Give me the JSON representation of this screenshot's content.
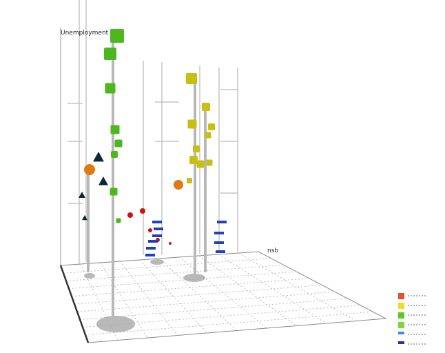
{
  "chart_data": {
    "type": "scatter",
    "projection": "3d",
    "title": "",
    "zlabel": "Unemployment",
    "xlabel": "nsb",
    "ylabel": "",
    "grid": true,
    "legend_position": "bottom-right",
    "series": [
      {
        "marker": "cube",
        "color": "#e8502a"
      },
      {
        "marker": "sphere",
        "color": "#e8e020"
      },
      {
        "marker": "cube",
        "color": "#5cc82a"
      },
      {
        "marker": "cube",
        "color": "#7ad83a"
      },
      {
        "marker": "bar",
        "color": "#3a8ee0"
      },
      {
        "marker": "bar",
        "color": "#2030b0"
      }
    ],
    "colors": {
      "green": "#4cb81e",
      "olive": "#c8c010",
      "orange": "#e07a10",
      "red": "#d01010",
      "navy": "#1a3a8a",
      "blue": "#2040c0",
      "pole": "#b8b8b8",
      "shadow": "#a8a8a8"
    }
  }
}
